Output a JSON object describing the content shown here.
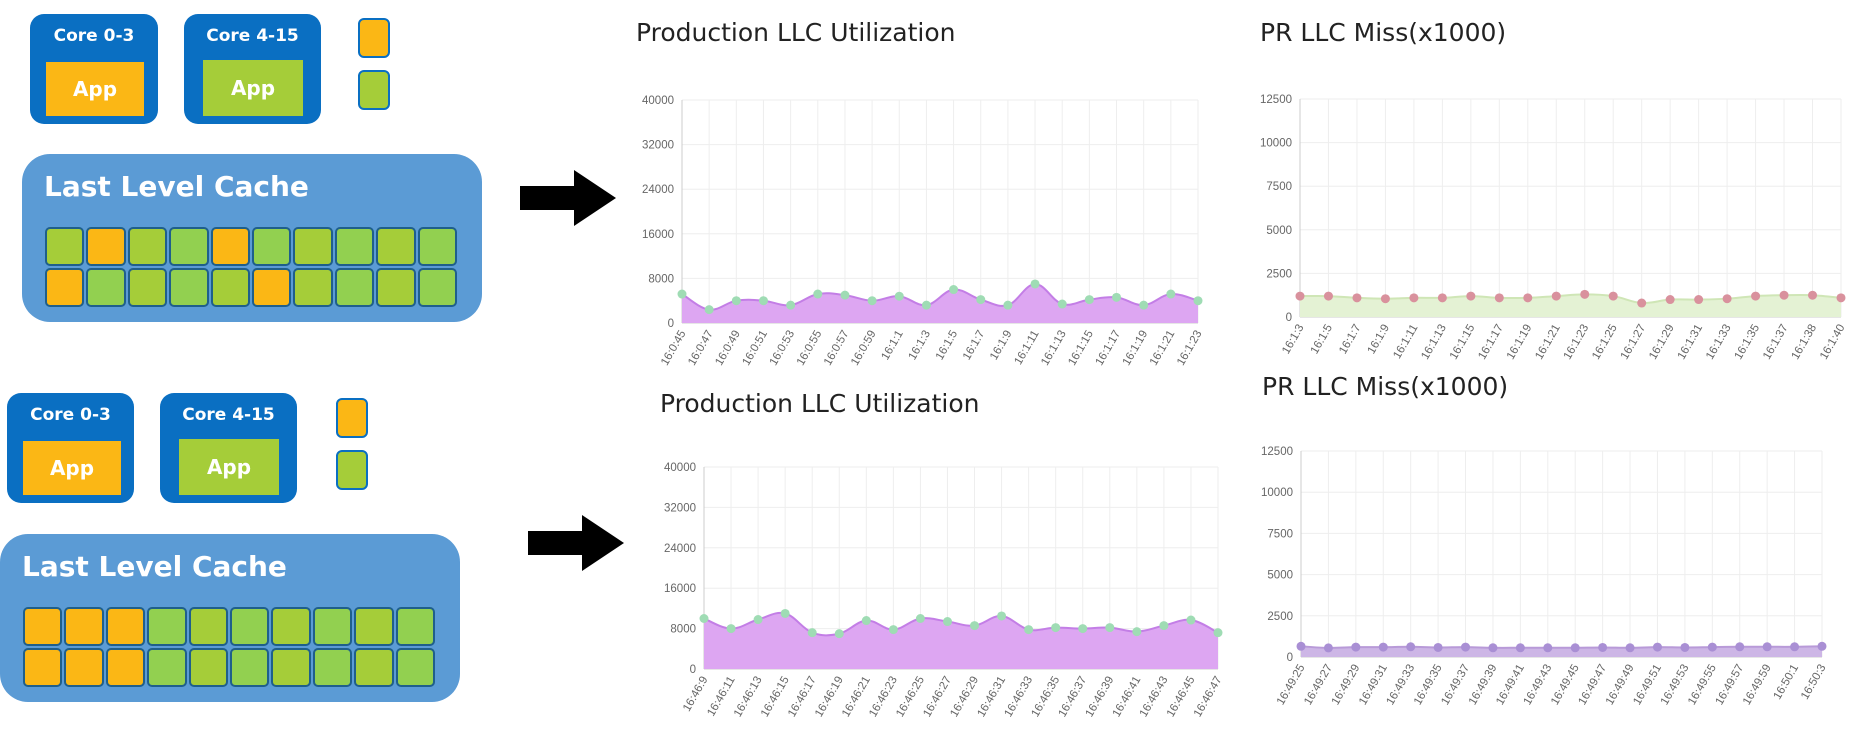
{
  "colors": {
    "core_blue": "#0a6fc2",
    "llc_blue": "#5b9bd5",
    "orange": "#fbb715",
    "green_a": "#a5cd39",
    "green_b": "#92d050",
    "grid": "#eeeeee",
    "axis_text": "#666666"
  },
  "diagrams": [
    {
      "core_a_label": "Core 0-3",
      "core_b_label": "Core 4-15",
      "app_a_label": "App",
      "app_b_label": "App",
      "llc_title": "Last Level Cache",
      "cells_row1": [
        "green",
        "orange",
        "green",
        "green",
        "orange",
        "green",
        "green",
        "green",
        "green",
        "green"
      ],
      "cells_row2": [
        "orange",
        "green",
        "green",
        "green",
        "green",
        "orange",
        "green",
        "green",
        "green",
        "green"
      ]
    },
    {
      "core_a_label": "Core 0-3",
      "core_b_label": "Core 4-15",
      "app_a_label": "App",
      "app_b_label": "App",
      "llc_title": "Last Level Cache",
      "cells_row1": [
        "orange",
        "orange",
        "orange",
        "green",
        "green",
        "green",
        "green",
        "green",
        "green",
        "green"
      ],
      "cells_row2": [
        "orange",
        "orange",
        "orange",
        "green",
        "green",
        "green",
        "green",
        "green",
        "green",
        "green"
      ]
    }
  ],
  "chart_data": [
    {
      "type": "area",
      "title": "Production LLC Utilization",
      "ylim": [
        0,
        40000
      ],
      "yticks": [
        0,
        8000,
        16000,
        24000,
        32000,
        40000
      ],
      "grid": true,
      "x": [
        "16:0:45",
        "16:0:47",
        "16:0:49",
        "16:0:51",
        "16:0:53",
        "16:0:55",
        "16:0:57",
        "16:0:59",
        "16:1:1",
        "16:1:3",
        "16:1:5",
        "16:1:7",
        "16:1:9",
        "16:1:11",
        "16:1:13",
        "16:1:15",
        "16:1:17",
        "16:1:19",
        "16:1:21",
        "16:1:23"
      ],
      "values": [
        5200,
        2400,
        4000,
        4000,
        3200,
        5200,
        5000,
        4000,
        4800,
        3200,
        6000,
        4200,
        3200,
        7000,
        3400,
        4200,
        4600,
        3200,
        5200,
        4000
      ],
      "fill": "#dda6f2",
      "line": "#c37ee6",
      "marker": "#9fdcb4"
    },
    {
      "type": "area",
      "title": "PR LLC Miss(x1000)",
      "ylim": [
        0,
        12500
      ],
      "yticks": [
        0,
        2500,
        5000,
        7500,
        10000,
        12500
      ],
      "grid": true,
      "x": [
        "16:1:3",
        "16:1:5",
        "16:1:7",
        "16:1:9",
        "16:1:11",
        "16:1:13",
        "16:1:15",
        "16:1:17",
        "16:1:19",
        "16:1:21",
        "16:1:23",
        "16:1:25",
        "16:1:27",
        "16:1:29",
        "16:1:31",
        "16:1:33",
        "16:1:35",
        "16:1:37",
        "16:1:38",
        "16:1:40"
      ],
      "values": [
        1200,
        1200,
        1100,
        1050,
        1100,
        1100,
        1200,
        1100,
        1100,
        1200,
        1300,
        1200,
        800,
        1000,
        1000,
        1050,
        1200,
        1250,
        1250,
        1100
      ],
      "fill": "#e4f2d4",
      "line": "#cfe6b6",
      "marker": "#d9919d"
    },
    {
      "type": "area",
      "title": "Production LLC Utilization",
      "ylim": [
        0,
        40000
      ],
      "yticks": [
        0,
        8000,
        16000,
        24000,
        32000,
        40000
      ],
      "grid": true,
      "x": [
        "16:46:9",
        "16:46:11",
        "16:46:13",
        "16:46:15",
        "16:46:17",
        "16:46:19",
        "16:46:21",
        "16:46:23",
        "16:46:25",
        "16:46:27",
        "16:46:29",
        "16:46:31",
        "16:46:33",
        "16:46:35",
        "16:46:37",
        "16:46:39",
        "16:46:41",
        "16:46:43",
        "16:46:45",
        "16:46:47"
      ],
      "values": [
        10000,
        8000,
        9800,
        11000,
        7200,
        7000,
        9600,
        7800,
        10000,
        9400,
        8600,
        10500,
        7800,
        8200,
        8000,
        8200,
        7400,
        8600,
        9700,
        7200
      ],
      "fill": "#dda6f2",
      "line": "#c37ee6",
      "marker": "#9fdcb4"
    },
    {
      "type": "area",
      "title": "PR LLC Miss(x1000)",
      "ylim": [
        0,
        12500
      ],
      "yticks": [
        0,
        2500,
        5000,
        7500,
        10000,
        12500
      ],
      "grid": true,
      "x": [
        "16:49:25",
        "16:49:27",
        "16:49:29",
        "16:49:31",
        "16:49:33",
        "16:49:35",
        "16:49:37",
        "16:49:39",
        "16:49:41",
        "16:49:43",
        "16:49:45",
        "16:49:47",
        "16:49:49",
        "16:49:51",
        "16:49:53",
        "16:49:55",
        "16:49:57",
        "16:49:59",
        "16:50:1",
        "16:50:3"
      ],
      "values": [
        650,
        550,
        600,
        600,
        620,
        580,
        600,
        560,
        560,
        560,
        560,
        580,
        560,
        600,
        580,
        600,
        620,
        620,
        620,
        650
      ],
      "fill": "#cdb6e6",
      "line": "#b89ad8",
      "marker": "#a98fd4"
    }
  ]
}
